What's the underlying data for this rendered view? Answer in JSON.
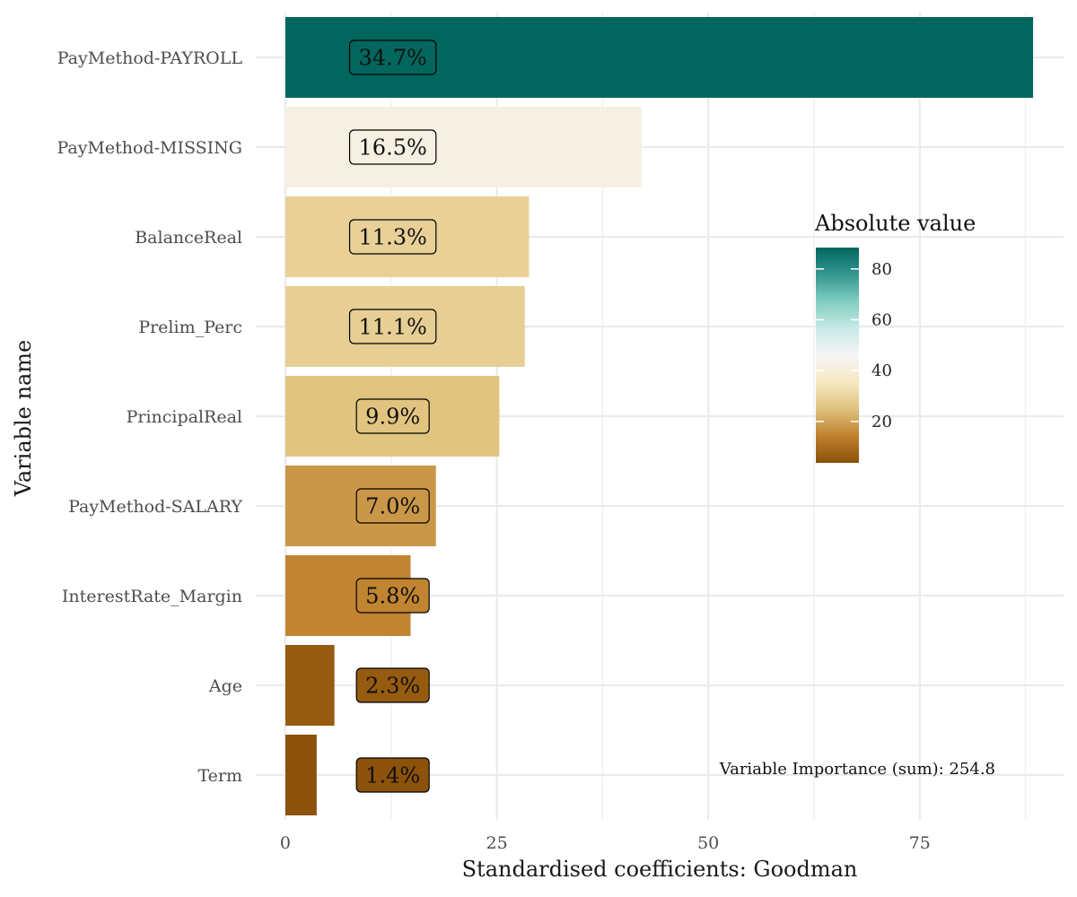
{
  "chart_data": {
    "type": "bar",
    "orientation": "horizontal",
    "categories": [
      "PayMethod-PAYROLL",
      "PayMethod-MISSING",
      "BalanceReal",
      "Prelim_Perc",
      "PrincipalReal",
      "PayMethod-SALARY",
      "InterestRate_Margin",
      "Age",
      "Term"
    ],
    "values": [
      88.4,
      42.1,
      28.8,
      28.3,
      25.3,
      17.8,
      14.8,
      5.8,
      3.7
    ],
    "labels": [
      "34.7%",
      "16.5%",
      "11.3%",
      "11.1%",
      "9.9%",
      "7.0%",
      "5.8%",
      "2.3%",
      "1.4%"
    ],
    "xlabel": "Standardised coefficients: Goodman",
    "ylabel": "Variable name",
    "xlim": [
      -3.5,
      92
    ],
    "xticks": [
      0,
      25,
      50,
      75
    ],
    "grid": true,
    "legend": {
      "title": "Absolute value",
      "placement": "right-inside",
      "ticks": [
        20,
        40,
        60,
        80
      ],
      "range": [
        3.7,
        88.4
      ],
      "colors": [
        "#8c510a",
        "#bf812d",
        "#dfc27d",
        "#f6e8c3",
        "#f5f5f5",
        "#c7eae5",
        "#80cdc1",
        "#35978f",
        "#01665e"
      ]
    },
    "annotation": "Variable Importance (sum): 254.8"
  }
}
